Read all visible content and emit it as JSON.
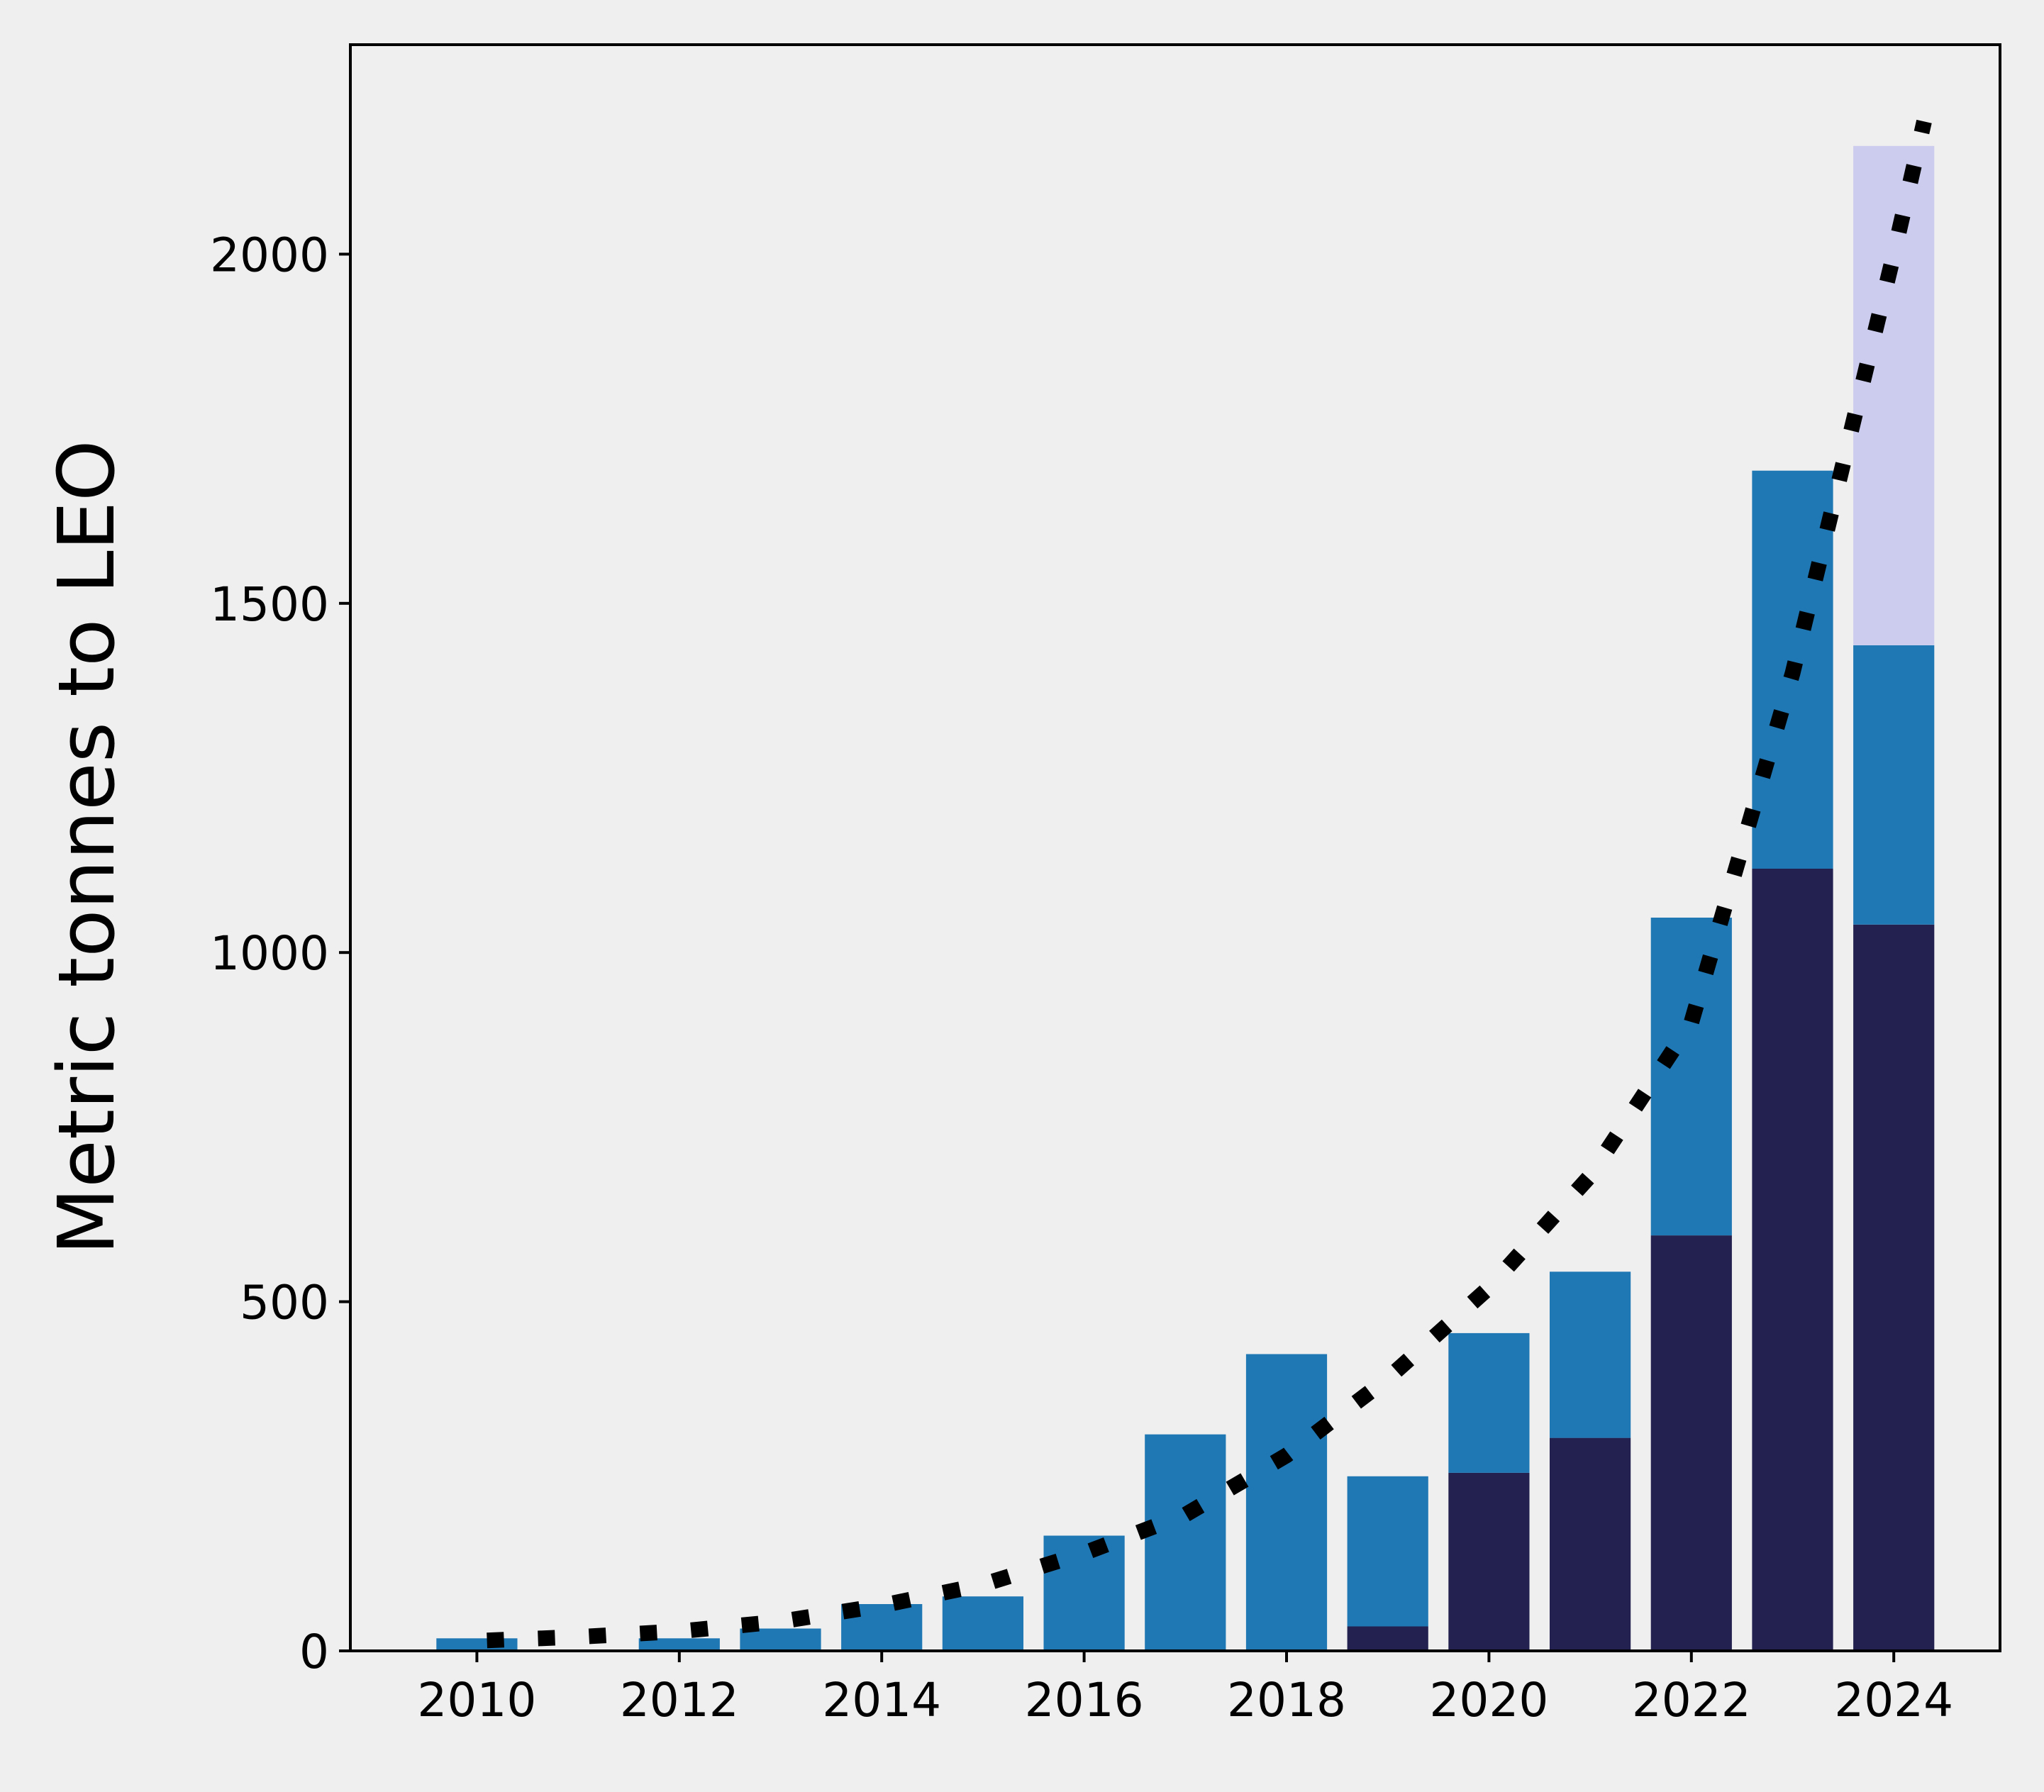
{
  "chart_data": {
    "type": "bar",
    "stacked": true,
    "title": "",
    "xlabel": "",
    "ylabel": "Metric tonnes to LEO",
    "x": [
      2010,
      2011,
      2012,
      2013,
      2014,
      2015,
      2016,
      2017,
      2018,
      2019,
      2020,
      2021,
      2022,
      2023,
      2024
    ],
    "xlim": [
      2008.75,
      2025.05
    ],
    "ylim": [
      0,
      2300
    ],
    "xticks": [
      "2010",
      "2012",
      "2014",
      "2016",
      "2018",
      "2020",
      "2022",
      "2024"
    ],
    "yticks": [
      "0",
      "500",
      "1000",
      "1500",
      "2000"
    ],
    "grid": false,
    "legend": "none",
    "series": [
      {
        "color": "#22214f",
        "values": [
          0,
          0,
          0,
          0,
          0,
          0,
          0,
          0,
          0,
          35,
          255,
          305,
          595,
          1120,
          1040
        ]
      },
      {
        "color": "#1f77b4",
        "values": [
          18,
          0,
          18,
          32,
          67,
          78,
          165,
          310,
          425,
          215,
          200,
          238,
          455,
          570,
          400
        ]
      },
      {
        "color": "#cccdee",
        "values": [
          0,
          0,
          0,
          0,
          0,
          0,
          0,
          0,
          0,
          0,
          0,
          0,
          0,
          0,
          715
        ]
      }
    ],
    "trend": {
      "style": "dotted",
      "color": "#000000",
      "x": [
        2010.1,
        2011,
        2012,
        2013,
        2014,
        2015,
        2016,
        2017,
        2018,
        2019,
        2020,
        2021,
        2022,
        2023,
        2024,
        2024.3
      ],
      "values": [
        15,
        20,
        28,
        42,
        65,
        95,
        140,
        195,
        280,
        390,
        520,
        680,
        900,
        1400,
        2000,
        2190
      ]
    }
  }
}
